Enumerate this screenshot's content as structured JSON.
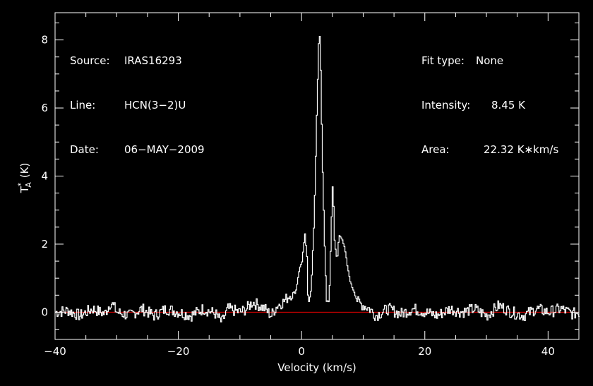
{
  "header_left": [
    {
      "label": "Source:",
      "value": "IRAS16293"
    },
    {
      "label": "Line:",
      "value": "HCN(3−2)U"
    },
    {
      "label": "Date:",
      "value": "06−MAY−2009"
    }
  ],
  "header_right": [
    {
      "label": "Fit type:",
      "value": "None"
    },
    {
      "label": "Intensity:",
      "value": "8.45 K"
    },
    {
      "label": "Area:",
      "value": "22.32 K∗km/s"
    }
  ],
  "chart_data": {
    "type": "line",
    "title": "",
    "xlabel": "Velocity (km/s)",
    "ylabel_main": "T",
    "ylabel_sub": "A",
    "ylabel_sup": "*",
    "ylabel_unit": "(K)",
    "xlim": [
      -40,
      45
    ],
    "ylim": [
      -0.8,
      8.8
    ],
    "x_ticks": [
      -40,
      -20,
      0,
      20,
      40
    ],
    "x_tick_labels": [
      "−40",
      "−20",
      "0",
      "20",
      "40"
    ],
    "y_ticks": [
      0,
      2,
      4,
      6,
      8
    ],
    "y_tick_labels": [
      "0",
      "2",
      "4",
      "6",
      "8"
    ],
    "grid": false,
    "colors": {
      "background": "#000000",
      "spectrum": "#ffffff",
      "baseline": "#ff0000",
      "axes": "#ffffff"
    },
    "series": [
      {
        "x": [
          -40,
          -38,
          -36,
          -34,
          -32,
          -31,
          -30,
          -28,
          -26,
          -24,
          -22,
          -20,
          -18,
          -16,
          -14,
          -13,
          -12,
          -10,
          -9,
          -8,
          -6,
          -5,
          -4,
          -3,
          -2,
          -1,
          -0.5,
          0,
          0.5,
          0.8,
          1.0,
          1.5,
          2.0,
          2.4,
          2.8,
          3.0,
          3.3,
          3.7,
          4.0,
          4.4,
          4.8,
          5.0,
          5.3,
          5.7,
          6.0,
          6.5,
          7.0,
          7.5,
          8.0,
          8.5,
          9.0,
          10,
          11,
          12,
          14,
          16,
          18,
          20,
          22,
          24,
          26,
          28,
          30,
          32,
          34,
          36,
          38,
          40,
          42,
          44,
          45
        ],
        "y": [
          0.0,
          0.05,
          -0.1,
          0.1,
          -0.05,
          0.3,
          0.0,
          -0.1,
          0.1,
          -0.1,
          0.1,
          0.0,
          -0.1,
          0.1,
          -0.05,
          -0.3,
          0.1,
          0.0,
          0.1,
          0.3,
          0.1,
          -0.1,
          0.2,
          0.3,
          0.5,
          0.6,
          1.2,
          1.5,
          2.3,
          1.6,
          0.2,
          0.7,
          2.8,
          5.8,
          8.45,
          7.5,
          4.5,
          1.8,
          0.3,
          0.3,
          2.8,
          3.9,
          2.0,
          1.5,
          2.25,
          2.2,
          1.8,
          1.2,
          0.8,
          0.6,
          0.3,
          0.2,
          0.1,
          -0.1,
          0.1,
          -0.05,
          0.1,
          0.0,
          -0.1,
          0.1,
          0.0,
          0.1,
          -0.1,
          0.2,
          0.0,
          -0.1,
          0.1,
          0.0,
          0.1,
          -0.05,
          0.0
        ]
      }
    ],
    "baseline_y": 0
  }
}
